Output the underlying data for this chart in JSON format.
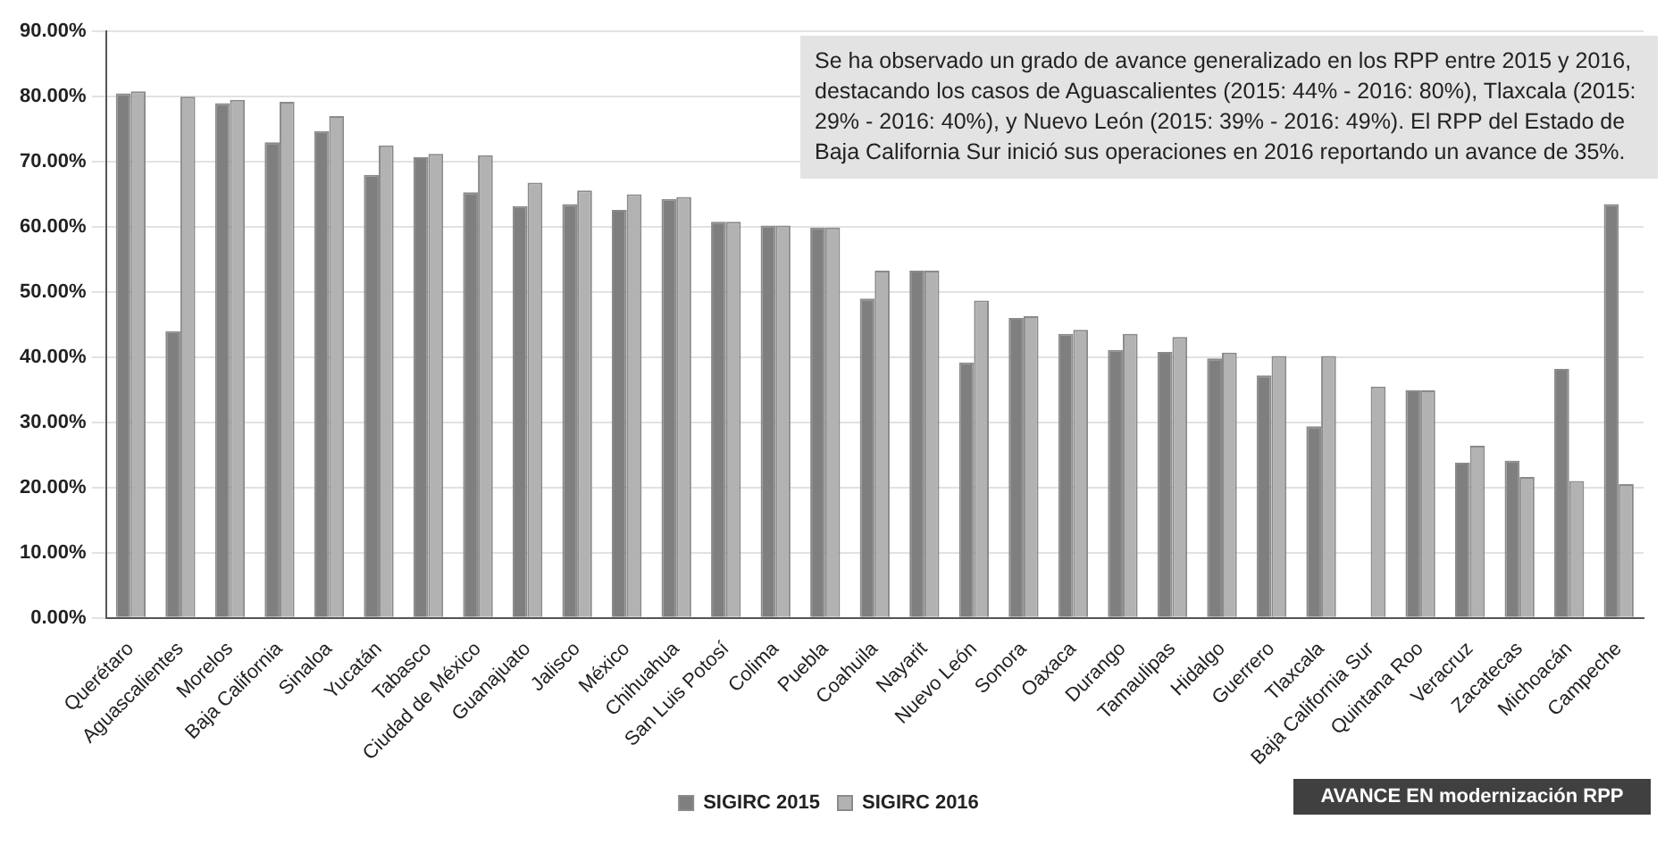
{
  "chart_data": {
    "type": "bar",
    "categories": [
      "Querétaro",
      "Aguascalientes",
      "Morelos",
      "Baja California",
      "Sinaloa",
      "Yucatán",
      "Tabasco",
      "Ciudad de México",
      "Guanajuato",
      "Jalisco",
      "México",
      "Chihuahua",
      "San Luis Potosí",
      "Colima",
      "Puebla",
      "Coahuila",
      "Nayarit",
      "Nuevo León",
      "Sonora",
      "Oaxaca",
      "Durango",
      "Tamaulipas",
      "Hidalgo",
      "Guerrero",
      "Tlaxcala",
      "Baja California Sur",
      "Quintana Roo",
      "Veracruz",
      "Zacatecas",
      "Michoacán",
      "Campeche"
    ],
    "series": [
      {
        "name": "SIGIRC 2015",
        "color": "#7f7f7f",
        "values": [
          80.5,
          44,
          79,
          73,
          74.7,
          68,
          70.7,
          65.3,
          63.2,
          63.5,
          62.6,
          64.3,
          60.8,
          60.2,
          59.9,
          49,
          53.3,
          39.2,
          46,
          43.6,
          41.1,
          40.8,
          39.8,
          37.2,
          29.4,
          null,
          34.9,
          23.8,
          24.1,
          38.2,
          63.5
        ]
      },
      {
        "name": "SIGIRC 2016",
        "color": "#b2b2b2",
        "values": [
          80.8,
          80,
          79.5,
          79.2,
          77,
          72.5,
          71.2,
          71,
          66.8,
          65.6,
          65,
          64.6,
          60.8,
          60.2,
          59.9,
          53.3,
          53.3,
          48.7,
          46.3,
          44.2,
          43.6,
          43.1,
          40.7,
          40.2,
          40.2,
          35.5,
          34.9,
          26.4,
          21.6,
          21,
          20.5
        ]
      }
    ],
    "ylim": [
      0,
      90
    ],
    "yticks": [
      {
        "value": 0,
        "label": "0.00%"
      },
      {
        "value": 10,
        "label": "10.00%"
      },
      {
        "value": 20,
        "label": "20.00%"
      },
      {
        "value": 30,
        "label": "30.00%"
      },
      {
        "value": 40,
        "label": "40.00%"
      },
      {
        "value": 50,
        "label": "50.00%"
      },
      {
        "value": 60,
        "label": "60.00%"
      },
      {
        "value": 70,
        "label": "70.00%"
      },
      {
        "value": 80,
        "label": "80.00%"
      },
      {
        "value": 90,
        "label": "90.00%"
      }
    ],
    "grid": "y",
    "legend": "bottom",
    "annotations": [
      "Se ha observado un grado de avance generalizado en los RPP entre 2015 y 2016, destacando los casos de Aguascalientes (2015: 44% - 2016: 80%), Tlaxcala (2015: 29% - 2016: 40%), y Nuevo León (2015: 39% - 2016: 49%). El RPP del Estado de Baja California Sur inició sus operaciones en 2016 reportando un avance de 35%.",
      "AVANCE EN modernización RPP"
    ]
  }
}
